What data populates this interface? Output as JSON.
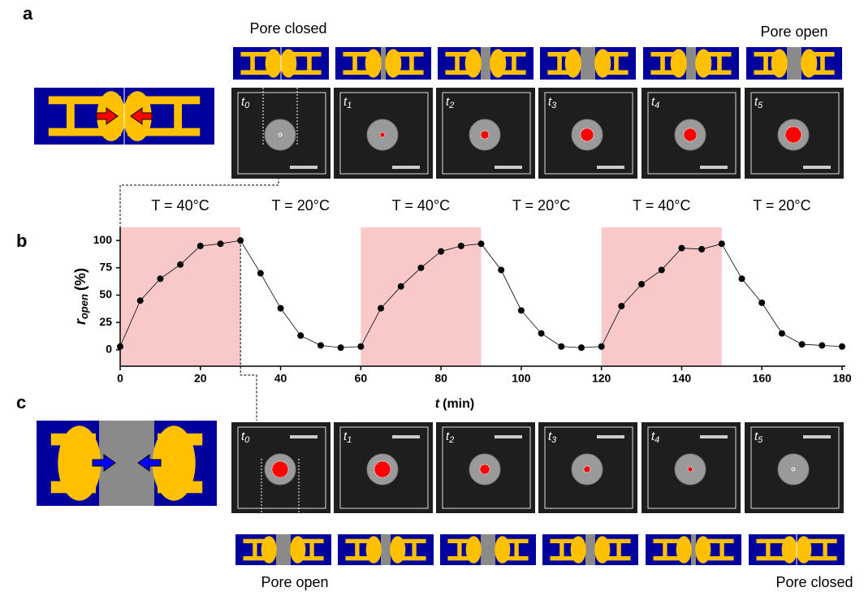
{
  "chart_data": {
    "type": "line",
    "color": "#000000",
    "band_color": "#f9c9c9",
    "x": [
      0,
      5,
      10,
      15,
      20,
      25,
      30,
      35,
      40,
      45,
      50,
      55,
      60,
      65,
      70,
      75,
      80,
      85,
      90,
      95,
      100,
      105,
      110,
      115,
      120,
      125,
      130,
      135,
      140,
      145,
      150,
      155,
      160,
      165,
      170,
      175,
      180
    ],
    "values": [
      3,
      45,
      65,
      78,
      95,
      97,
      100,
      70,
      38,
      13,
      4,
      2,
      3,
      38,
      58,
      75,
      90,
      95,
      97,
      73,
      36,
      15,
      3,
      2,
      3,
      40,
      60,
      73,
      93,
      92,
      97,
      65,
      43,
      15,
      5,
      4,
      3
    ],
    "xlim": [
      0,
      180
    ],
    "xticks": [
      0,
      20,
      40,
      60,
      80,
      100,
      120,
      140,
      160,
      180
    ],
    "ylim": [
      -15,
      112
    ],
    "yticks": [
      0,
      25,
      50,
      75,
      100
    ],
    "xlabel": {
      "main": "t",
      "unit": "(min)"
    },
    "ylabel": {
      "main": "r",
      "sub": "open",
      "unit": "(%)"
    },
    "temperature_bands": [
      {
        "from": 0,
        "to": 30,
        "label": "T = 40°C",
        "shaded": true
      },
      {
        "from": 30,
        "to": 60,
        "label": "T = 20°C",
        "shaded": false
      },
      {
        "from": 60,
        "to": 90,
        "label": "T = 40°C",
        "shaded": true
      },
      {
        "from": 90,
        "to": 120,
        "label": "T = 20°C",
        "shaded": false
      },
      {
        "from": 120,
        "to": 150,
        "label": "T = 40°C",
        "shaded": true
      },
      {
        "from": 150,
        "to": 180,
        "label": "T = 20°C",
        "shaded": false
      }
    ]
  },
  "panel_a": {
    "letter": "a",
    "captions": [
      "Pore closed",
      "Pore open"
    ],
    "photo_labels": [
      [
        "t",
        "0"
      ],
      [
        "t",
        "1"
      ],
      [
        "t",
        "2"
      ],
      [
        "t",
        "3"
      ],
      [
        "t",
        "4"
      ],
      [
        "t",
        "5"
      ]
    ]
  },
  "panel_b": {
    "letter": "b"
  },
  "panel_c": {
    "letter": "c",
    "captions": [
      "Pore open",
      "Pore closed"
    ],
    "photo_labels": [
      [
        "t",
        "0"
      ],
      [
        "t",
        "1"
      ],
      [
        "t",
        "2"
      ],
      [
        "t",
        "3"
      ],
      [
        "t",
        "4"
      ],
      [
        "t",
        "5"
      ]
    ]
  }
}
